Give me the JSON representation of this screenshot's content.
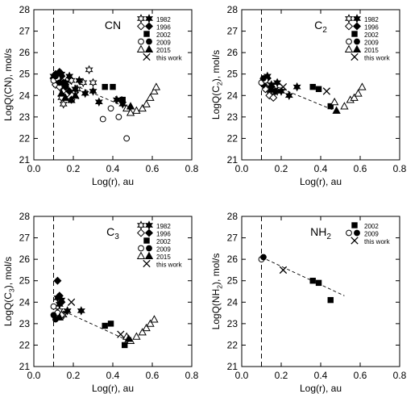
{
  "chart_data": [
    {
      "type": "scatter",
      "title": "CN",
      "title_sub": "",
      "xlabel": "Log(r), au",
      "ylabel": "LogQ(CN), mol/s",
      "xlim": [
        0,
        0.8
      ],
      "ylim": [
        21,
        28
      ],
      "xticks": [
        "0.0",
        "0.2",
        "0.4",
        "0.6",
        "0.8"
      ],
      "yticks": [
        "21",
        "22",
        "23",
        "24",
        "25",
        "26",
        "27",
        "28"
      ],
      "vline_x": 0.1,
      "series": [
        {
          "name": "1982",
          "marker": "star-open",
          "points": [
            [
              0.14,
              23.9
            ],
            [
              0.15,
              23.6
            ],
            [
              0.16,
              24.4
            ],
            [
              0.19,
              24.7
            ],
            [
              0.22,
              24.3
            ],
            [
              0.25,
              24.6
            ],
            [
              0.28,
              25.2
            ],
            [
              0.3,
              24.6
            ]
          ]
        },
        {
          "name": "",
          "marker": "star-filled",
          "points": [
            [
              0.1,
              24.9
            ],
            [
              0.12,
              24.6
            ],
            [
              0.14,
              25.0
            ],
            [
              0.16,
              24.6
            ],
            [
              0.18,
              24.9
            ],
            [
              0.21,
              24.3
            ],
            [
              0.23,
              24.7
            ],
            [
              0.26,
              24.1
            ],
            [
              0.3,
              24.2
            ],
            [
              0.33,
              23.7
            ],
            [
              0.42,
              23.8
            ],
            [
              0.45,
              23.6
            ]
          ]
        },
        {
          "name": "1996",
          "marker": "diamond-open",
          "points": [
            [
              0.11,
              24.5
            ],
            [
              0.12,
              24.7
            ],
            [
              0.13,
              24.4
            ],
            [
              0.15,
              24.2
            ],
            [
              0.17,
              24.1
            ],
            [
              0.19,
              23.8
            ]
          ]
        },
        {
          "name": "",
          "marker": "diamond-filled",
          "points": [
            [
              0.1,
              24.8
            ],
            [
              0.11,
              25.0
            ],
            [
              0.12,
              24.7
            ],
            [
              0.13,
              25.1
            ],
            [
              0.14,
              24.9
            ],
            [
              0.15,
              24.6
            ],
            [
              0.16,
              24.4
            ],
            [
              0.18,
              24.2
            ]
          ]
        },
        {
          "name": "2002",
          "marker": "square-filled",
          "points": [
            [
              0.36,
              24.4
            ],
            [
              0.4,
              24.4
            ],
            [
              0.45,
              23.8
            ]
          ]
        },
        {
          "name": "2009",
          "marker": "circle-open",
          "points": [
            [
              0.1,
              24.7
            ],
            [
              0.12,
              24.8
            ],
            [
              0.35,
              22.9
            ],
            [
              0.39,
              23.4
            ],
            [
              0.43,
              23.0
            ],
            [
              0.47,
              22.0
            ]
          ]
        },
        {
          "name": "",
          "marker": "circle-filled",
          "points": [
            [
              0.11,
              24.9
            ],
            [
              0.13,
              24.6
            ]
          ]
        },
        {
          "name": "2015",
          "marker": "triangle-open",
          "points": [
            [
              0.47,
              23.4
            ],
            [
              0.49,
              23.2
            ],
            [
              0.52,
              23.3
            ],
            [
              0.55,
              23.4
            ],
            [
              0.57,
              23.6
            ],
            [
              0.59,
              23.9
            ],
            [
              0.61,
              24.2
            ],
            [
              0.62,
              24.4
            ]
          ]
        },
        {
          "name": "",
          "marker": "triangle-filled",
          "points": [
            [
              0.14,
              24.1
            ],
            [
              0.16,
              23.9
            ],
            [
              0.19,
              23.8
            ],
            [
              0.21,
              24.0
            ],
            [
              0.49,
              23.5
            ]
          ]
        },
        {
          "name": "this work",
          "marker": "x",
          "points": [
            [
              0.21,
              24.0
            ],
            [
              0.43,
              23.8
            ]
          ]
        }
      ],
      "trend": [
        [
          0.1,
          24.9
        ],
        [
          0.48,
          23.4
        ]
      ]
    },
    {
      "type": "scatter",
      "title": "C",
      "title_sub": "2",
      "xlabel": "Log(r), au",
      "ylabel": "LogQ(C",
      "ylabel_sub": "2",
      "ylabel_tail": "), mol/s",
      "xlim": [
        0,
        0.8
      ],
      "ylim": [
        21,
        28
      ],
      "xticks": [
        "0.0",
        "0.2",
        "0.4",
        "0.6",
        "0.8"
      ],
      "yticks": [
        "21",
        "22",
        "23",
        "24",
        "25",
        "26",
        "27",
        "28"
      ],
      "vline_x": 0.1,
      "series": [
        {
          "name": "1982",
          "marker": "star-open",
          "points": [
            [
              0.13,
              24.3
            ],
            [
              0.15,
              24.0
            ],
            [
              0.18,
              24.2
            ]
          ]
        },
        {
          "name": "",
          "marker": "star-filled",
          "points": [
            [
              0.11,
              24.7
            ],
            [
              0.13,
              24.9
            ],
            [
              0.15,
              24.5
            ],
            [
              0.18,
              24.6
            ],
            [
              0.2,
              24.2
            ],
            [
              0.24,
              24.0
            ],
            [
              0.28,
              24.4
            ]
          ]
        },
        {
          "name": "1996",
          "marker": "diamond-open",
          "points": [
            [
              0.12,
              24.3
            ],
            [
              0.14,
              24.0
            ],
            [
              0.16,
              23.9
            ]
          ]
        },
        {
          "name": "",
          "marker": "diamond-filled",
          "points": [
            [
              0.11,
              24.5
            ],
            [
              0.13,
              24.8
            ],
            [
              0.15,
              24.4
            ],
            [
              0.17,
              24.2
            ]
          ]
        },
        {
          "name": "2002",
          "marker": "square-filled",
          "points": [
            [
              0.36,
              24.4
            ],
            [
              0.39,
              24.3
            ],
            [
              0.45,
              23.5
            ]
          ]
        },
        {
          "name": "2009",
          "marker": "circle-open",
          "points": [
            [
              0.1,
              24.6
            ],
            [
              0.12,
              24.7
            ]
          ]
        },
        {
          "name": "",
          "marker": "circle-filled",
          "points": [
            [
              0.11,
              24.8
            ]
          ]
        },
        {
          "name": "2015",
          "marker": "triangle-open",
          "points": [
            [
              0.47,
              23.7
            ],
            [
              0.52,
              23.5
            ],
            [
              0.55,
              23.8
            ],
            [
              0.57,
              23.9
            ],
            [
              0.59,
              24.1
            ],
            [
              0.61,
              24.4
            ]
          ]
        },
        {
          "name": "",
          "marker": "triangle-filled",
          "points": [
            [
              0.15,
              24.3
            ],
            [
              0.48,
              23.3
            ]
          ]
        },
        {
          "name": "this work",
          "marker": "x",
          "points": [
            [
              0.21,
              24.4
            ],
            [
              0.43,
              24.2
            ]
          ]
        }
      ],
      "trend": [
        [
          0.1,
          24.7
        ],
        [
          0.47,
          23.3
        ]
      ]
    },
    {
      "type": "scatter",
      "title": "C",
      "title_sub": "3",
      "xlabel": "Log(r), au",
      "ylabel": "LogQ(C",
      "ylabel_sub": "3",
      "ylabel_tail": "), mol/s",
      "xlim": [
        0,
        0.8
      ],
      "ylim": [
        21,
        28
      ],
      "xticks": [
        "0.0",
        "0.2",
        "0.4",
        "0.6",
        "0.8"
      ],
      "yticks": [
        "21",
        "22",
        "23",
        "24",
        "25",
        "26",
        "27",
        "28"
      ],
      "vline_x": 0.1,
      "series": [
        {
          "name": "1982",
          "marker": "star-open",
          "points": [
            [
              0.13,
              23.6
            ],
            [
              0.15,
              23.4
            ]
          ]
        },
        {
          "name": "",
          "marker": "star-filled",
          "points": [
            [
              0.12,
              24.2
            ],
            [
              0.13,
              23.9
            ],
            [
              0.14,
              24.1
            ],
            [
              0.17,
              23.6
            ],
            [
              0.24,
              23.6
            ]
          ]
        },
        {
          "name": "1996",
          "marker": "diamond-open",
          "points": [
            [
              0.12,
              23.5
            ],
            [
              0.14,
              23.4
            ]
          ]
        },
        {
          "name": "",
          "marker": "diamond-filled",
          "points": [
            [
              0.12,
              25.0
            ],
            [
              0.13,
              24.3
            ],
            [
              0.14,
              24.0
            ]
          ]
        },
        {
          "name": "2002",
          "marker": "square-filled",
          "points": [
            [
              0.36,
              22.9
            ],
            [
              0.39,
              23.0
            ],
            [
              0.46,
              22.0
            ]
          ]
        },
        {
          "name": "2009",
          "marker": "circle-open",
          "points": [
            [
              0.1,
              23.8
            ],
            [
              0.12,
              23.5
            ]
          ]
        },
        {
          "name": "",
          "marker": "circle-filled",
          "points": [
            [
              0.1,
              23.4
            ],
            [
              0.11,
              23.2
            ]
          ]
        },
        {
          "name": "2015",
          "marker": "triangle-open",
          "points": [
            [
              0.47,
              22.4
            ],
            [
              0.49,
              22.2
            ],
            [
              0.52,
              22.4
            ],
            [
              0.55,
              22.6
            ],
            [
              0.57,
              22.8
            ],
            [
              0.59,
              23.0
            ],
            [
              0.61,
              23.2
            ]
          ]
        },
        {
          "name": "",
          "marker": "triangle-filled",
          "points": [
            [
              0.13,
              23.3
            ],
            [
              0.48,
              22.3
            ]
          ]
        },
        {
          "name": "this work",
          "marker": "x",
          "points": [
            [
              0.19,
              24.0
            ],
            [
              0.44,
              22.5
            ]
          ]
        }
      ],
      "trend": [
        [
          0.1,
          23.8
        ],
        [
          0.48,
          22.2
        ]
      ]
    },
    {
      "type": "scatter",
      "title": "NH",
      "title_sub": "2",
      "xlabel": "Log(r), au",
      "ylabel": "LogQ(NH",
      "ylabel_sub": "2",
      "ylabel_tail": "), mol/s",
      "xlim": [
        0,
        0.8
      ],
      "ylim": [
        21,
        28
      ],
      "xticks": [
        "0.0",
        "0.2",
        "0.4",
        "0.6",
        "0.8"
      ],
      "yticks": [
        "21",
        "22",
        "23",
        "24",
        "25",
        "26",
        "27",
        "28"
      ],
      "vline_x": 0.1,
      "series": [
        {
          "name": "2002",
          "marker": "square-filled",
          "points": [
            [
              0.36,
              25.0
            ],
            [
              0.39,
              24.9
            ],
            [
              0.45,
              24.1
            ]
          ]
        },
        {
          "name": "2009",
          "marker": "circle-open",
          "points": [
            [
              0.1,
              26.0
            ]
          ]
        },
        {
          "name": "",
          "marker": "circle-filled",
          "points": [
            [
              0.11,
              26.1
            ]
          ]
        },
        {
          "name": "this work",
          "marker": "x",
          "points": [
            [
              0.21,
              25.5
            ]
          ]
        }
      ],
      "trend": [
        [
          0.1,
          26.1
        ],
        [
          0.52,
          24.3
        ]
      ]
    }
  ]
}
